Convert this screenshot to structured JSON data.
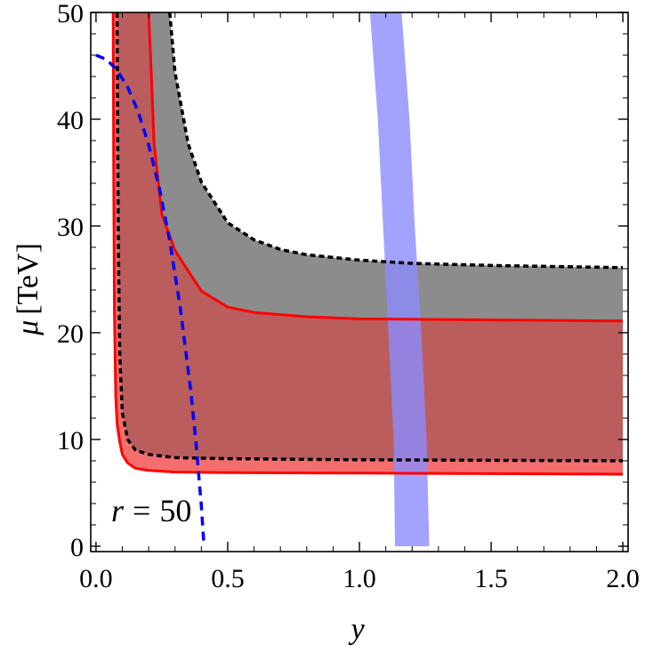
{
  "chart_data": {
    "type": "area",
    "xlabel": "y",
    "ylabel_symbol": "μ",
    "ylabel_unit": "[TeV]",
    "xlim": [
      -0.02,
      2.02
    ],
    "ylim": [
      -0.5,
      50
    ],
    "x_ticks": [
      0.0,
      0.5,
      1.0,
      1.5,
      2.0
    ],
    "x_tick_labels": [
      "0.0",
      "0.5",
      "1.0",
      "1.5",
      "2.0"
    ],
    "y_ticks": [
      0,
      10,
      20,
      30,
      40,
      50
    ],
    "y_tick_labels": [
      "0",
      "10",
      "20",
      "30",
      "40",
      "50"
    ],
    "annotation": {
      "var": "r",
      "eq": "=",
      "value": "50"
    },
    "colors": {
      "gray_band": "#8c8c8c",
      "red_band": "#f46e6e",
      "red_line": "#ff0000",
      "dashed_line": "#000000",
      "blue_band": "#8c8cff",
      "blue_dashed": "#0000ff"
    },
    "series": [
      {
        "style": "black-dotted",
        "x": [
          0.28,
          0.3,
          0.35,
          0.4,
          0.5,
          0.6,
          0.7,
          0.8,
          1.0,
          1.2,
          1.5,
          2.0
        ],
        "y": [
          50,
          44.4,
          37.7,
          34.1,
          30.3,
          28.7,
          27.8,
          27.3,
          26.8,
          26.5,
          26.3,
          26.1
        ]
      },
      {
        "style": "red-solid",
        "x": [
          0.2,
          0.21,
          0.22,
          0.25,
          0.3,
          0.35,
          0.4,
          0.5,
          0.6,
          0.8,
          1.0,
          1.5,
          2.0
        ],
        "y": [
          50,
          44.2,
          37.8,
          31.1,
          27.7,
          25.8,
          23.9,
          22.4,
          21.9,
          21.5,
          21.3,
          21.2,
          21.1
        ]
      },
      {
        "style": "black-dotted",
        "x": [
          0.08,
          0.082,
          0.085,
          0.09,
          0.1,
          0.12,
          0.15,
          0.2,
          0.3,
          0.5,
          1.0,
          1.5,
          2.0
        ],
        "y": [
          50,
          40,
          28,
          18,
          12.5,
          10,
          9,
          8.6,
          8.3,
          8.2,
          8.1,
          8.05,
          8.0
        ]
      },
      {
        "style": "red-solid",
        "x": [
          0.065,
          0.067,
          0.07,
          0.075,
          0.08,
          0.09,
          0.1,
          0.12,
          0.15,
          0.2,
          0.3,
          0.5,
          1.0,
          1.5,
          2.0
        ],
        "y": [
          50,
          35,
          22,
          14,
          11.5,
          9.8,
          8.6,
          7.8,
          7.3,
          7.1,
          6.95,
          6.9,
          6.85,
          6.8,
          6.75
        ]
      }
    ],
    "blue_band": {
      "left_x": [
        1.04,
        1.07,
        1.09,
        1.11,
        1.13,
        1.135
      ],
      "right_x": [
        1.16,
        1.19,
        1.21,
        1.235,
        1.255,
        1.265
      ],
      "y": [
        50,
        40,
        30,
        20,
        10,
        0
      ]
    },
    "blue_dashed": {
      "x": [
        0.0,
        0.04,
        0.08,
        0.12,
        0.16,
        0.2,
        0.24,
        0.28,
        0.32,
        0.36,
        0.38,
        0.4,
        0.41
      ],
      "y": [
        46,
        45.6,
        44.6,
        43,
        40.7,
        37.6,
        33.6,
        28.6,
        22.3,
        14.5,
        9.6,
        3.7,
        0
      ]
    }
  }
}
